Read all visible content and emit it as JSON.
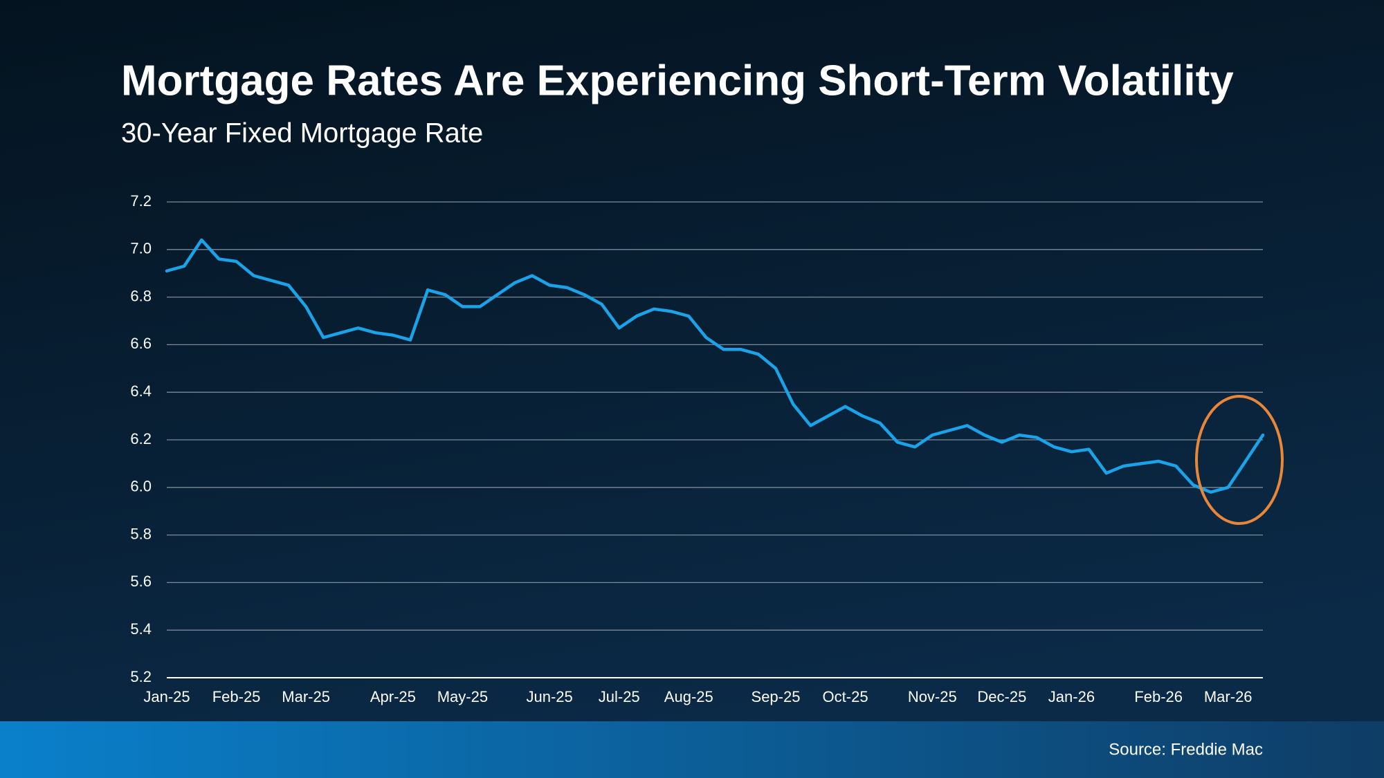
{
  "chart_data": {
    "type": "line",
    "title": "Mortgage Rates Are Experiencing Short-Term Volatility",
    "subtitle": "30-Year Fixed Mortgage Rate",
    "source": "Source: Freddie Mac",
    "categories": [
      "Jan-25",
      null,
      null,
      null,
      "Feb-25",
      null,
      null,
      null,
      "Mar-25",
      null,
      null,
      null,
      null,
      "Apr-25",
      null,
      null,
      null,
      "May-25",
      null,
      null,
      null,
      null,
      "Jun-25",
      null,
      null,
      null,
      "Jul-25",
      null,
      null,
      null,
      "Aug-25",
      null,
      null,
      null,
      null,
      "Sep-25",
      null,
      null,
      null,
      "Oct-25",
      null,
      null,
      null,
      null,
      "Nov-25",
      null,
      null,
      null,
      "Dec-25",
      null,
      null,
      null,
      "Jan-26",
      null,
      null,
      null,
      null,
      "Feb-26",
      null,
      null,
      null,
      "Mar-26",
      null,
      null
    ],
    "series": [
      {
        "name": "30-Year Fixed Mortgage Rate",
        "color": "#1aa3e8",
        "values": [
          6.91,
          6.93,
          7.04,
          6.96,
          6.95,
          6.89,
          6.87,
          6.85,
          6.76,
          6.63,
          6.65,
          6.67,
          6.65,
          6.64,
          6.62,
          6.83,
          6.81,
          6.76,
          6.76,
          6.81,
          6.86,
          6.89,
          6.85,
          6.84,
          6.81,
          6.77,
          6.67,
          6.72,
          6.75,
          6.74,
          6.72,
          6.63,
          6.58,
          6.58,
          6.56,
          6.5,
          6.35,
          6.26,
          6.3,
          6.34,
          6.3,
          6.27,
          6.19,
          6.17,
          6.22,
          6.24,
          6.26,
          6.22,
          6.19,
          6.22,
          6.21,
          6.17,
          6.15,
          6.16,
          6.06,
          6.09,
          6.1,
          6.11,
          6.09,
          6.01,
          5.98,
          6.0,
          6.11,
          6.22
        ]
      }
    ],
    "ylim": [
      5.2,
      7.2
    ],
    "yticks": [
      5.2,
      5.4,
      5.6,
      5.8,
      {
        "value": 6,
        "label": "6.0"
      },
      6.2,
      6.4,
      6.6,
      6.8,
      {
        "value": 7,
        "label": "7.0"
      },
      7.2
    ],
    "grid": true
  }
}
